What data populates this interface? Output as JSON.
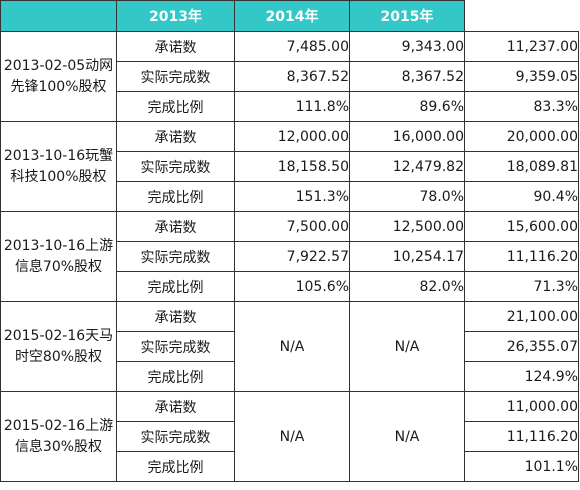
{
  "header": {
    "corner": "",
    "years": [
      "2013年",
      "2014年",
      "2015年"
    ]
  },
  "deals": [
    {
      "name_line1": "2013-02-05动网",
      "name_line2": "先锋100%股权",
      "rows": [
        {
          "label": "承诺数",
          "values": [
            "7,485.00",
            "9,343.00",
            "11,237.00"
          ]
        },
        {
          "label": "实际完成数",
          "values": [
            "8,367.52",
            "8,367.52",
            "9,359.05"
          ]
        },
        {
          "label": "完成比例",
          "values": [
            "111.8%",
            "89.6%",
            "83.3%"
          ]
        }
      ]
    },
    {
      "name_line1": "2013-10-16玩蟹",
      "name_line2": "科技100%股权",
      "rows": [
        {
          "label": "承诺数",
          "values": [
            "12,000.00",
            "16,000.00",
            "20,000.00"
          ]
        },
        {
          "label": "实际完成数",
          "values": [
            "18,158.50",
            "12,479.82",
            "18,089.81"
          ]
        },
        {
          "label": "完成比例",
          "values": [
            "151.3%",
            "78.0%",
            "90.4%"
          ]
        }
      ]
    },
    {
      "name_line1": "2013-10-16上游",
      "name_line2": "信息70%股权",
      "rows": [
        {
          "label": "承诺数",
          "values": [
            "7,500.00",
            "12,500.00",
            "15,600.00"
          ]
        },
        {
          "label": "实际完成数",
          "values": [
            "7,922.57",
            "10,254.17",
            "11,116.20"
          ]
        },
        {
          "label": "完成比例",
          "values": [
            "105.6%",
            "82.0%",
            "71.3%"
          ]
        }
      ]
    },
    {
      "name_line1": "2015-02-16天马",
      "name_line2": "时空80%股权",
      "na_2013": "N/A",
      "na_2014": "N/A",
      "rows": [
        {
          "label": "承诺数",
          "value_2015": "21,100.00"
        },
        {
          "label": "实际完成数",
          "value_2015": "26,355.07"
        },
        {
          "label": "完成比例",
          "value_2015": "124.9%"
        }
      ]
    },
    {
      "name_line1": "2015-02-16上游",
      "name_line2": "信息30%股权",
      "na_2013": "N/A",
      "na_2014": "N/A",
      "rows": [
        {
          "label": "承诺数",
          "value_2015": "11,000.00"
        },
        {
          "label": "实际完成数",
          "value_2015": "11,116.20"
        },
        {
          "label": "完成比例",
          "value_2015": "101.1%"
        }
      ]
    }
  ],
  "colors": {
    "header_bg": "#33c7c7",
    "header_text": "#ffffff",
    "border": "#333333"
  }
}
